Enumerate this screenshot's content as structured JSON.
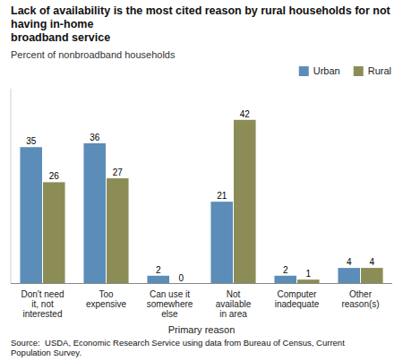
{
  "chart_data": {
    "type": "bar",
    "title": "Lack of availability is the most cited reason by rural households for not having in-home\nbroadband service",
    "subtitle": "Percent of nonbroadband households",
    "xlabel": "Primary reason",
    "source": "Source:  USDA, Economic Research Service using data from Bureau of Census, Current\nPopulation Survey.",
    "categories": [
      "Don't need\nit, not\ninterested",
      "Too\nexpensive",
      "Can use it\nsomewhere\nelse",
      "Not\navailable\nin area",
      "Computer\ninadequate",
      "Other\nreason(s)"
    ],
    "series": [
      {
        "name": "Urban",
        "color": "#5B8DB8",
        "values": [
          35,
          36,
          2,
          21,
          2,
          4
        ]
      },
      {
        "name": "Rural",
        "color": "#8C8C57",
        "values": [
          26,
          27,
          0,
          42,
          1,
          4
        ]
      }
    ],
    "ylim": [
      0,
      50
    ],
    "grid": false,
    "legend": "upper right",
    "data_labels": true,
    "tick_labels": "x"
  }
}
